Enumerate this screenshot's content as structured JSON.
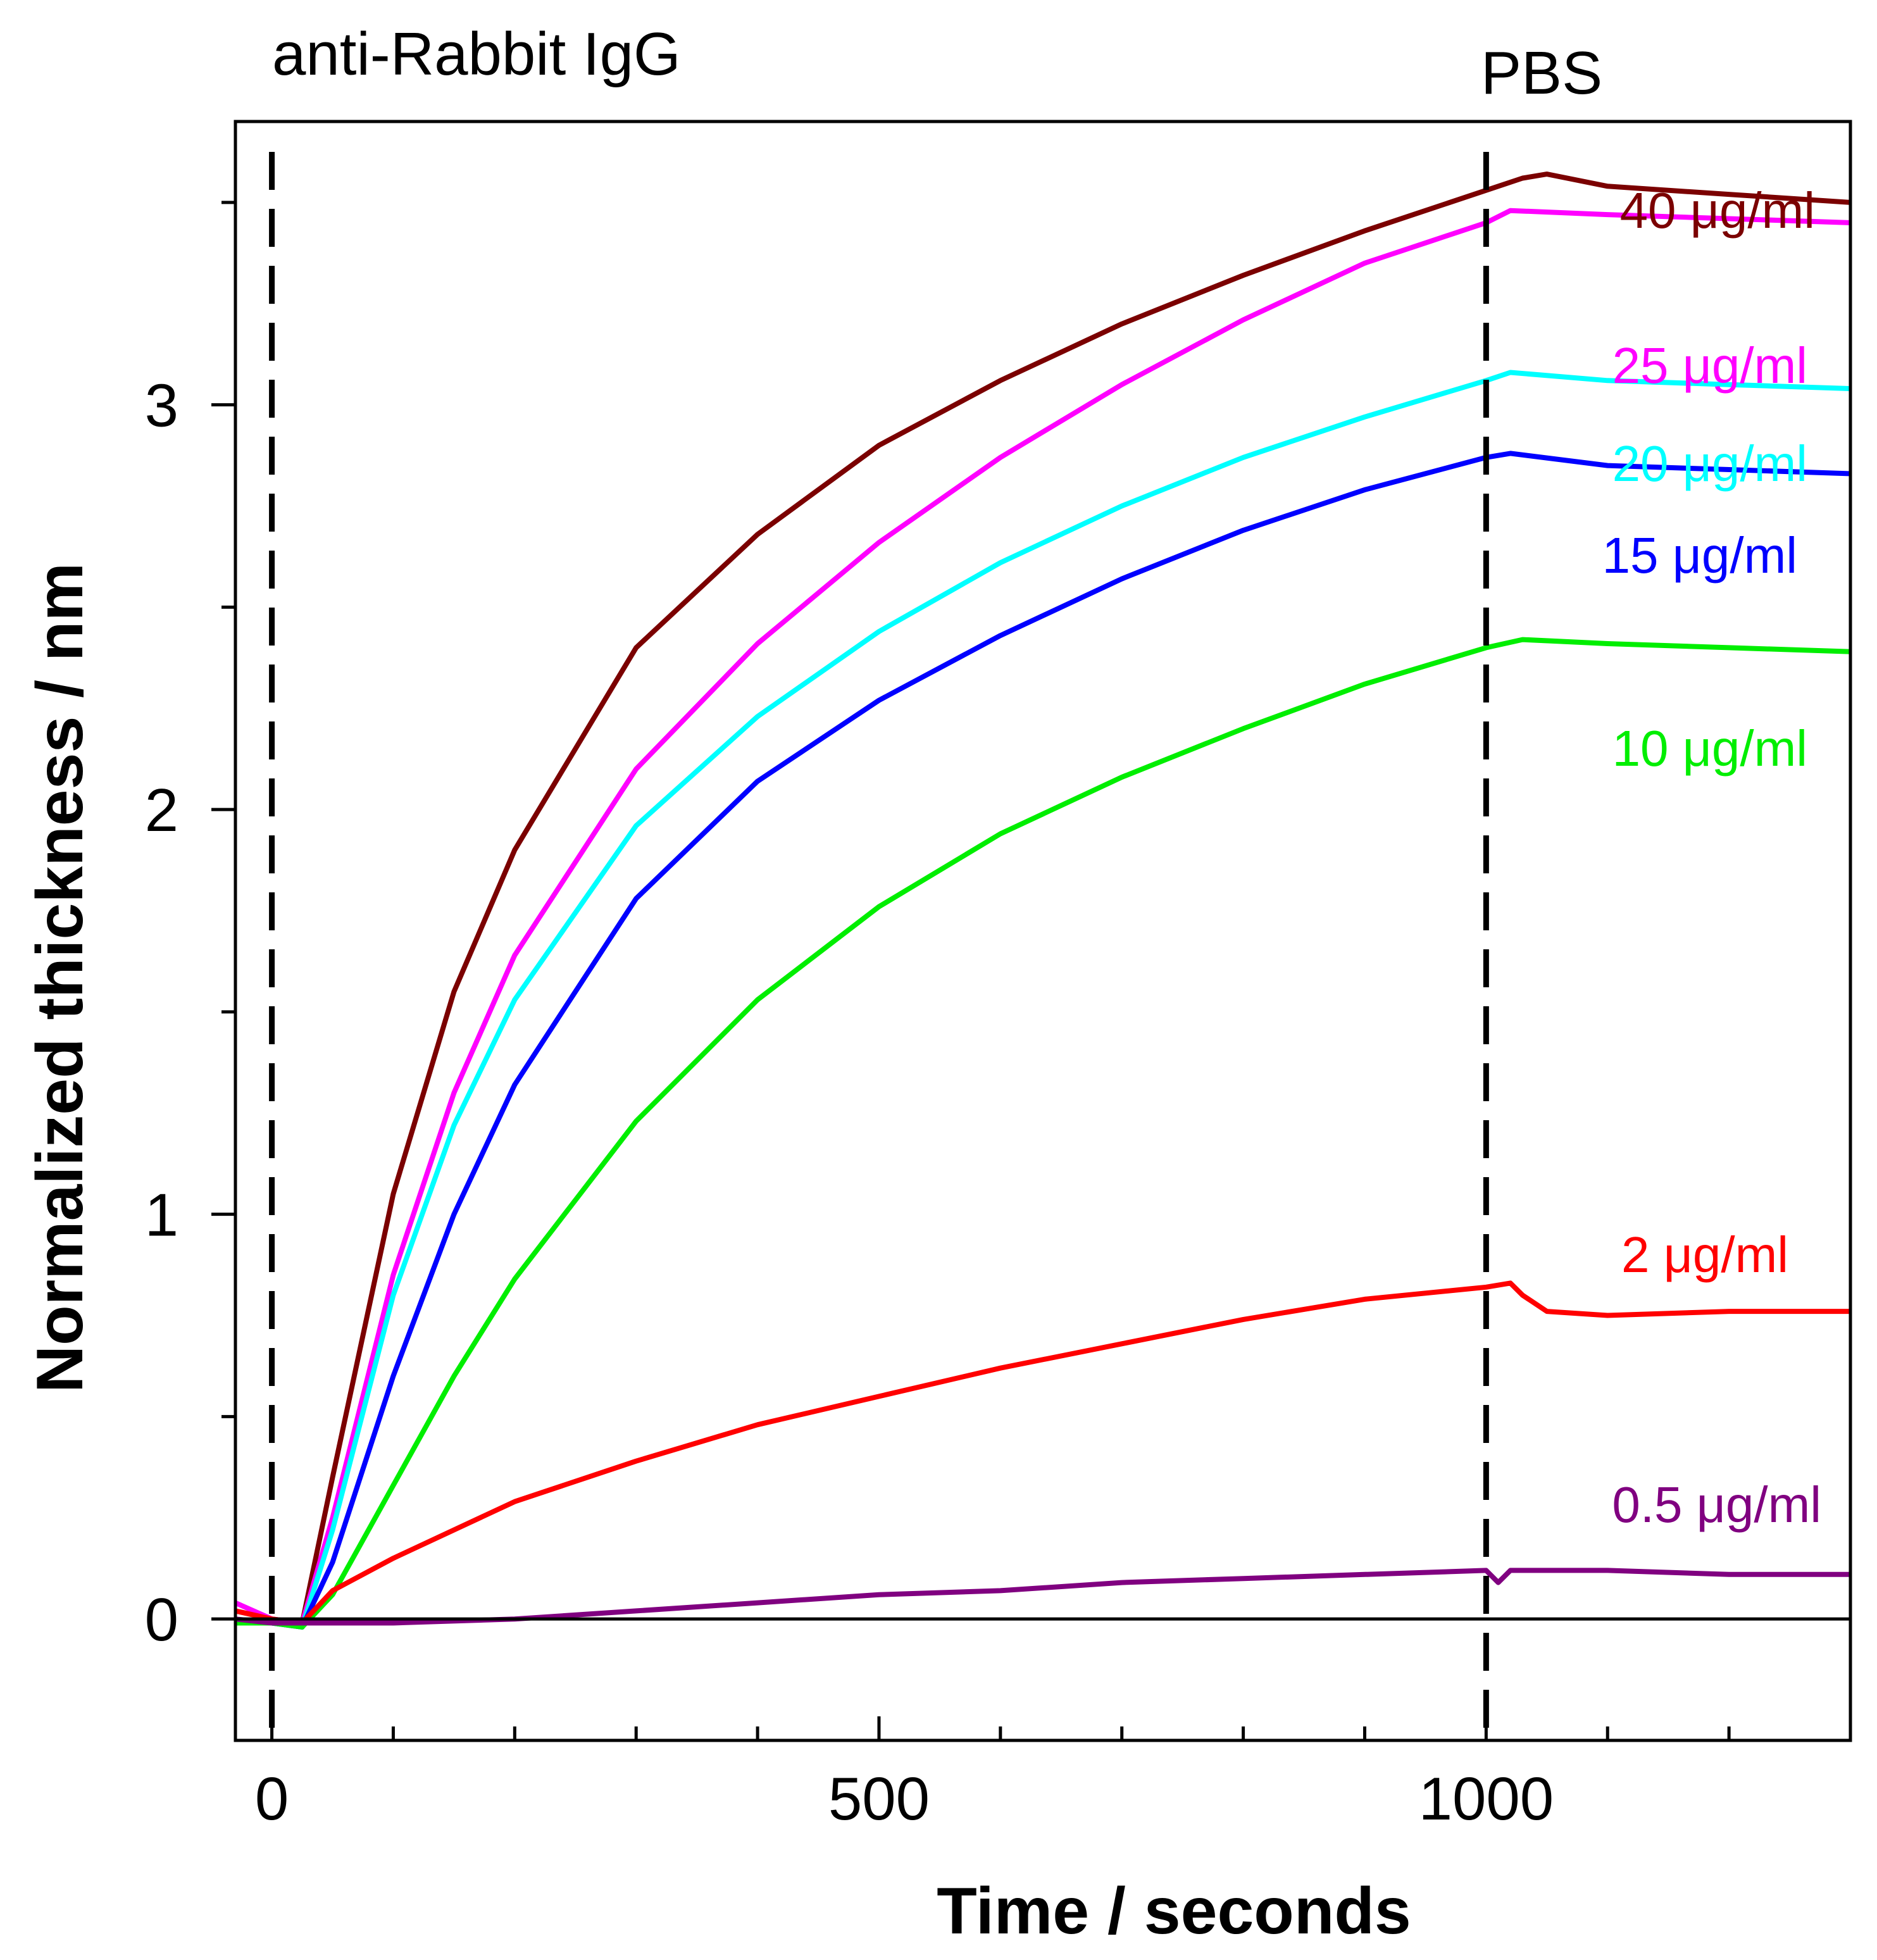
{
  "chart_data": {
    "type": "line",
    "title": "",
    "xlabel": "Time / seconds",
    "ylabel": "Normalized thickness / nm",
    "xlim": [
      -30,
      1300
    ],
    "ylim": [
      -0.3,
      3.7
    ],
    "xticks": [
      0,
      500,
      1000
    ],
    "xtick_labels": [
      "0",
      "500",
      "1000"
    ],
    "xminor_step": 100,
    "yticks": [
      0,
      1,
      2,
      3
    ],
    "ytick_labels": [
      "0",
      "1",
      "2",
      "3"
    ],
    "yminor_step": 0.5,
    "grid": false,
    "zero_line": true,
    "annotations": [
      {
        "name": "injection-label",
        "text": "anti-Rabbit IgG",
        "at_x": 0
      },
      {
        "name": "buffer-label",
        "text": "PBS",
        "at_x": 1000
      }
    ],
    "vlines": [
      {
        "name": "injection-marker",
        "x": 0,
        "style": "dashed"
      },
      {
        "name": "buffer-switch-marker",
        "x": 1000,
        "style": "dashed"
      }
    ],
    "series": [
      {
        "name": "40 µg/ml",
        "label": "40 μg/ml",
        "color": "#7b0000",
        "x": [
          -30,
          0,
          25,
          50,
          100,
          150,
          200,
          300,
          400,
          500,
          600,
          700,
          800,
          900,
          1000,
          1030,
          1050,
          1100,
          1200,
          1300
        ],
        "y": [
          0.02,
          0.0,
          -0.01,
          0.35,
          1.05,
          1.55,
          1.9,
          2.4,
          2.68,
          2.9,
          3.06,
          3.2,
          3.32,
          3.43,
          3.53,
          3.56,
          3.57,
          3.54,
          3.52,
          3.5
        ]
      },
      {
        "name": "25 µg/ml",
        "label": "25 μg/ml",
        "color": "#ff00ff",
        "x": [
          -30,
          0,
          25,
          50,
          100,
          150,
          200,
          300,
          400,
          500,
          600,
          700,
          800,
          900,
          1000,
          1020,
          1100,
          1200,
          1300
        ],
        "y": [
          0.04,
          0.0,
          -0.01,
          0.25,
          0.85,
          1.3,
          1.64,
          2.1,
          2.41,
          2.66,
          2.87,
          3.05,
          3.21,
          3.35,
          3.45,
          3.48,
          3.47,
          3.46,
          3.45
        ]
      },
      {
        "name": "20 µg/ml",
        "label": "20 μg/ml",
        "color": "#00ffff",
        "x": [
          -30,
          0,
          25,
          50,
          100,
          150,
          200,
          300,
          400,
          500,
          600,
          700,
          800,
          900,
          1000,
          1020,
          1100,
          1200,
          1300
        ],
        "y": [
          -0.01,
          -0.01,
          -0.02,
          0.22,
          0.8,
          1.22,
          1.53,
          1.96,
          2.23,
          2.44,
          2.61,
          2.75,
          2.87,
          2.97,
          3.06,
          3.08,
          3.06,
          3.05,
          3.04
        ]
      },
      {
        "name": "15 µg/ml",
        "label": "15 μg/ml",
        "color": "#0000ff",
        "x": [
          -30,
          0,
          25,
          50,
          100,
          150,
          200,
          300,
          400,
          500,
          600,
          700,
          800,
          900,
          1000,
          1020,
          1100,
          1200,
          1300
        ],
        "y": [
          -0.01,
          -0.01,
          -0.02,
          0.14,
          0.6,
          1.0,
          1.32,
          1.78,
          2.07,
          2.27,
          2.43,
          2.57,
          2.69,
          2.79,
          2.87,
          2.88,
          2.85,
          2.84,
          2.83
        ]
      },
      {
        "name": "10 µg/ml",
        "label": "10 μg/ml",
        "color": "#00ee00",
        "x": [
          -30,
          0,
          25,
          50,
          100,
          150,
          200,
          300,
          400,
          500,
          600,
          700,
          800,
          900,
          1000,
          1030,
          1100,
          1200,
          1300
        ],
        "y": [
          -0.01,
          -0.01,
          -0.02,
          0.06,
          0.33,
          0.6,
          0.84,
          1.23,
          1.53,
          1.76,
          1.94,
          2.08,
          2.2,
          2.31,
          2.4,
          2.42,
          2.41,
          2.4,
          2.39
        ]
      },
      {
        "name": "2 µg/ml",
        "label": "2 μg/ml",
        "color": "#ff0000",
        "x": [
          -30,
          0,
          25,
          50,
          100,
          200,
          300,
          400,
          500,
          600,
          700,
          800,
          900,
          1000,
          1020,
          1030,
          1050,
          1100,
          1200,
          1300
        ],
        "y": [
          0.02,
          0.0,
          -0.01,
          0.07,
          0.15,
          0.29,
          0.39,
          0.48,
          0.55,
          0.62,
          0.68,
          0.74,
          0.79,
          0.82,
          0.83,
          0.8,
          0.76,
          0.75,
          0.76,
          0.76
        ]
      },
      {
        "name": "0.5 µg/ml",
        "label": "0.5 μg/ml",
        "color": "#800080",
        "x": [
          -30,
          0,
          25,
          100,
          200,
          300,
          400,
          500,
          600,
          700,
          800,
          900,
          1000,
          1010,
          1020,
          1030,
          1100,
          1200,
          1300
        ],
        "y": [
          0.0,
          -0.01,
          -0.01,
          -0.01,
          0.0,
          0.02,
          0.04,
          0.06,
          0.07,
          0.09,
          0.1,
          0.11,
          0.12,
          0.09,
          0.12,
          0.12,
          0.12,
          0.11,
          0.11
        ]
      }
    ]
  }
}
